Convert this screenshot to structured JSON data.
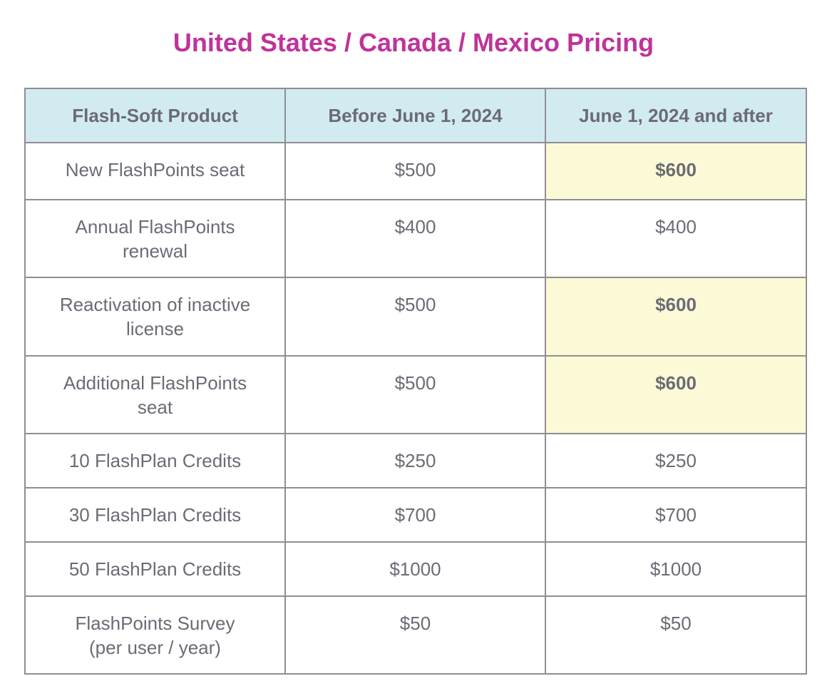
{
  "title": "United States / Canada / Mexico Pricing",
  "table": {
    "headers": [
      "Flash-Soft Product",
      "Before June 1, 2024",
      "June 1, 2024 and after"
    ],
    "rows": [
      {
        "product_lines": [
          "New FlashPoints seat"
        ],
        "before": "$500",
        "after": "$600",
        "after_highlight": true
      },
      {
        "product_lines": [
          "Annual FlashPoints",
          "renewal"
        ],
        "before": "$400",
        "after": "$400",
        "after_highlight": false
      },
      {
        "product_lines": [
          "Reactivation of inactive",
          "license"
        ],
        "before": "$500",
        "after": "$600",
        "after_highlight": true
      },
      {
        "product_lines": [
          "Additional FlashPoints",
          "seat"
        ],
        "before": "$500",
        "after": "$600",
        "after_highlight": true
      },
      {
        "product_lines": [
          "10 FlashPlan Credits"
        ],
        "before": "$250",
        "after": "$250",
        "after_highlight": false
      },
      {
        "product_lines": [
          "30 FlashPlan Credits"
        ],
        "before": "$700",
        "after": "$700",
        "after_highlight": false
      },
      {
        "product_lines": [
          "50 FlashPlan Credits"
        ],
        "before": "$1000",
        "after": "$1000",
        "after_highlight": false
      },
      {
        "product_lines": [
          "FlashPoints Survey",
          "(per user / year)"
        ],
        "before": "$50",
        "after": "$50",
        "after_highlight": false
      }
    ]
  },
  "colors": {
    "title": "#c0339a",
    "header_bg": "#d2ebf1",
    "highlight_bg": "#fcfad6",
    "text": "#6b6b76",
    "border": "#8e8e94"
  }
}
